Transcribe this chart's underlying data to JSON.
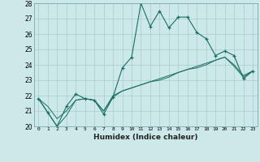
{
  "xlabel": "Humidex (Indice chaleur)",
  "x_values": [
    0,
    1,
    2,
    3,
    4,
    5,
    6,
    7,
    8,
    9,
    10,
    11,
    12,
    13,
    14,
    15,
    16,
    17,
    18,
    19,
    20,
    21,
    22,
    23
  ],
  "line1": [
    21.8,
    20.9,
    20.0,
    21.3,
    22.1,
    21.8,
    21.7,
    20.8,
    21.9,
    23.8,
    24.5,
    28.0,
    26.5,
    27.5,
    26.4,
    27.1,
    27.1,
    26.1,
    25.7,
    24.6,
    24.9,
    24.6,
    23.1,
    23.6
  ],
  "line2": [
    21.8,
    21.3,
    20.5,
    21.0,
    21.7,
    21.8,
    21.7,
    21.0,
    22.0,
    22.3,
    22.5,
    22.7,
    22.9,
    23.1,
    23.3,
    23.5,
    23.7,
    23.9,
    24.1,
    24.3,
    24.5,
    24.0,
    23.3,
    23.6
  ],
  "line3": [
    21.8,
    20.9,
    20.0,
    20.7,
    21.7,
    21.8,
    21.7,
    21.0,
    21.9,
    22.3,
    22.5,
    22.7,
    22.9,
    23.0,
    23.2,
    23.5,
    23.7,
    23.8,
    24.0,
    24.3,
    24.5,
    23.9,
    23.2,
    23.6
  ],
  "ylim": [
    20,
    28
  ],
  "yticks": [
    20,
    21,
    22,
    23,
    24,
    25,
    26,
    27,
    28
  ],
  "color": "#1a7060",
  "bg_color": "#cce8e8",
  "grid_color": "#aacccc",
  "spine_color": "#7aaaaa"
}
